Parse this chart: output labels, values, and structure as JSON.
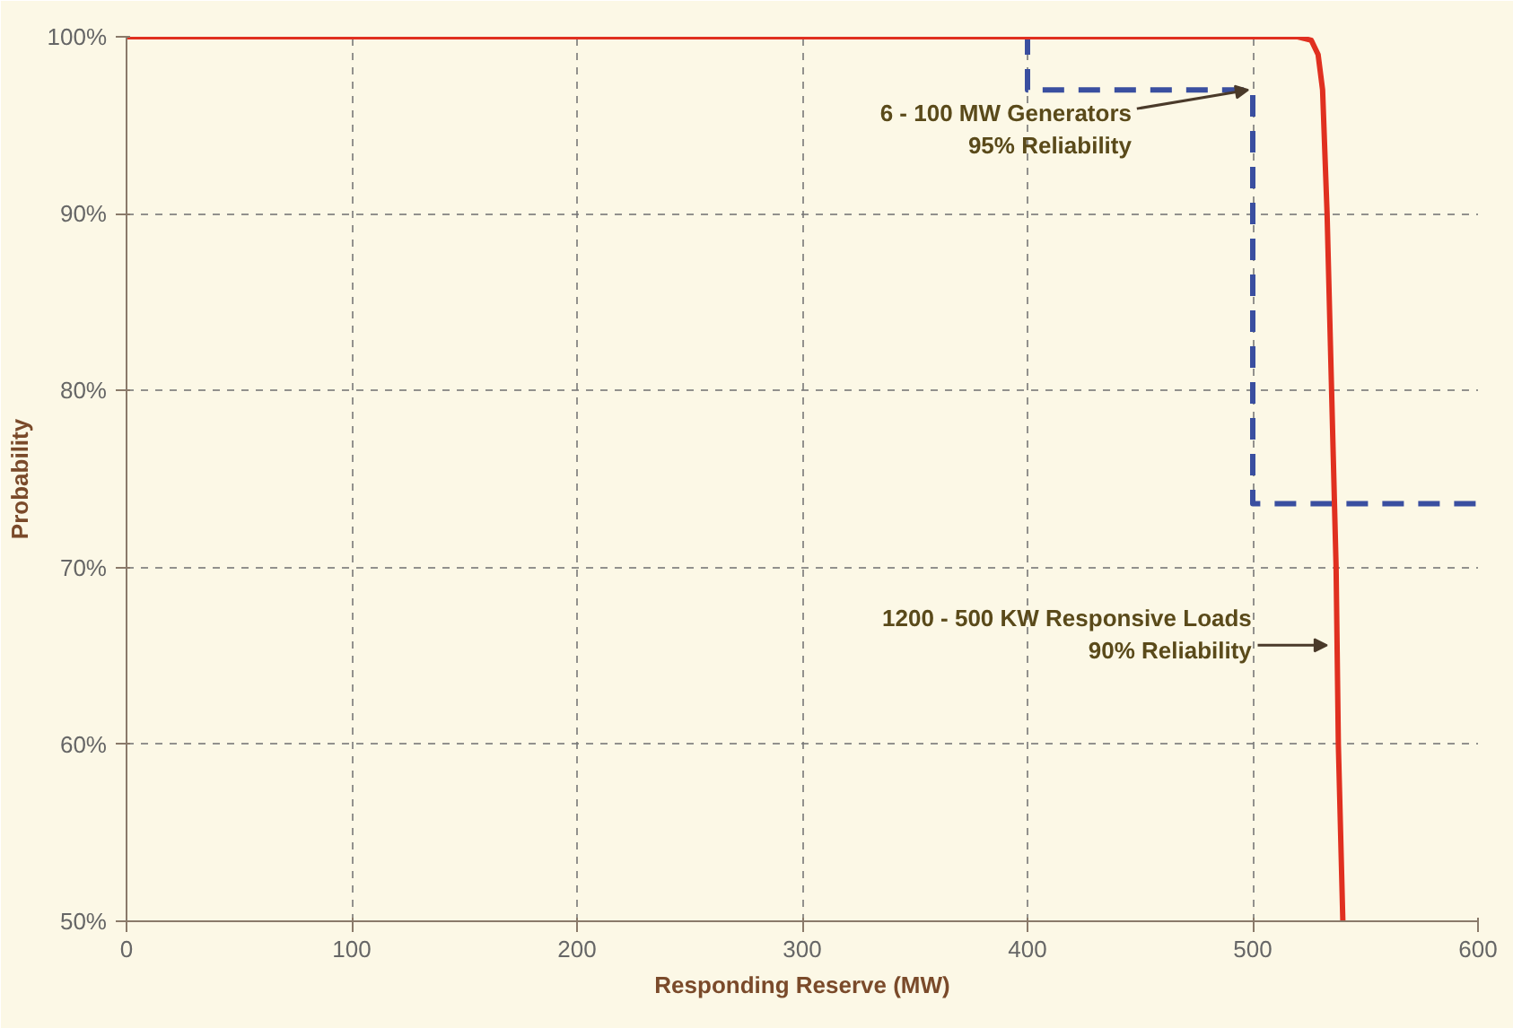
{
  "chart_data": {
    "type": "line",
    "xlabel": "Responding Reserve (MW)",
    "ylabel": "Probability",
    "series": [
      {
        "x": [
          0,
          400,
          400,
          500,
          500,
          600
        ],
        "values": [
          100,
          100,
          97,
          97,
          73.6,
          73.6
        ],
        "color": "#3a4fa0",
        "line_style": "dashed"
      },
      {
        "x": [
          0,
          520,
          526,
          529,
          531,
          533,
          535,
          537,
          538,
          540
        ],
        "values": [
          100,
          100,
          99.8,
          99,
          97,
          90,
          80,
          70,
          60,
          50
        ],
        "color": "#e03020",
        "line_style": "solid"
      }
    ],
    "xlim": [
      0,
      600
    ],
    "xticks": [
      0,
      100,
      200,
      300,
      400,
      500,
      600
    ],
    "ylim": [
      50,
      100
    ],
    "yticks": [
      {
        "value": 50,
        "label": "50%"
      },
      {
        "value": 60,
        "label": "60%"
      },
      {
        "value": 70,
        "label": "70%"
      },
      {
        "value": 80,
        "label": "80%"
      },
      {
        "value": 90,
        "label": "90%"
      },
      {
        "value": 100,
        "label": "100%"
      }
    ],
    "grid": true,
    "marker": "none",
    "annotations": [
      {
        "text": "6 - 100 MW Generators\n95% Reliability",
        "x": 498,
        "y": 97
      },
      {
        "text": "1200 - 500 KW Responsive Loads\n90% Reliability",
        "x": 533,
        "y": 65.6
      }
    ]
  }
}
